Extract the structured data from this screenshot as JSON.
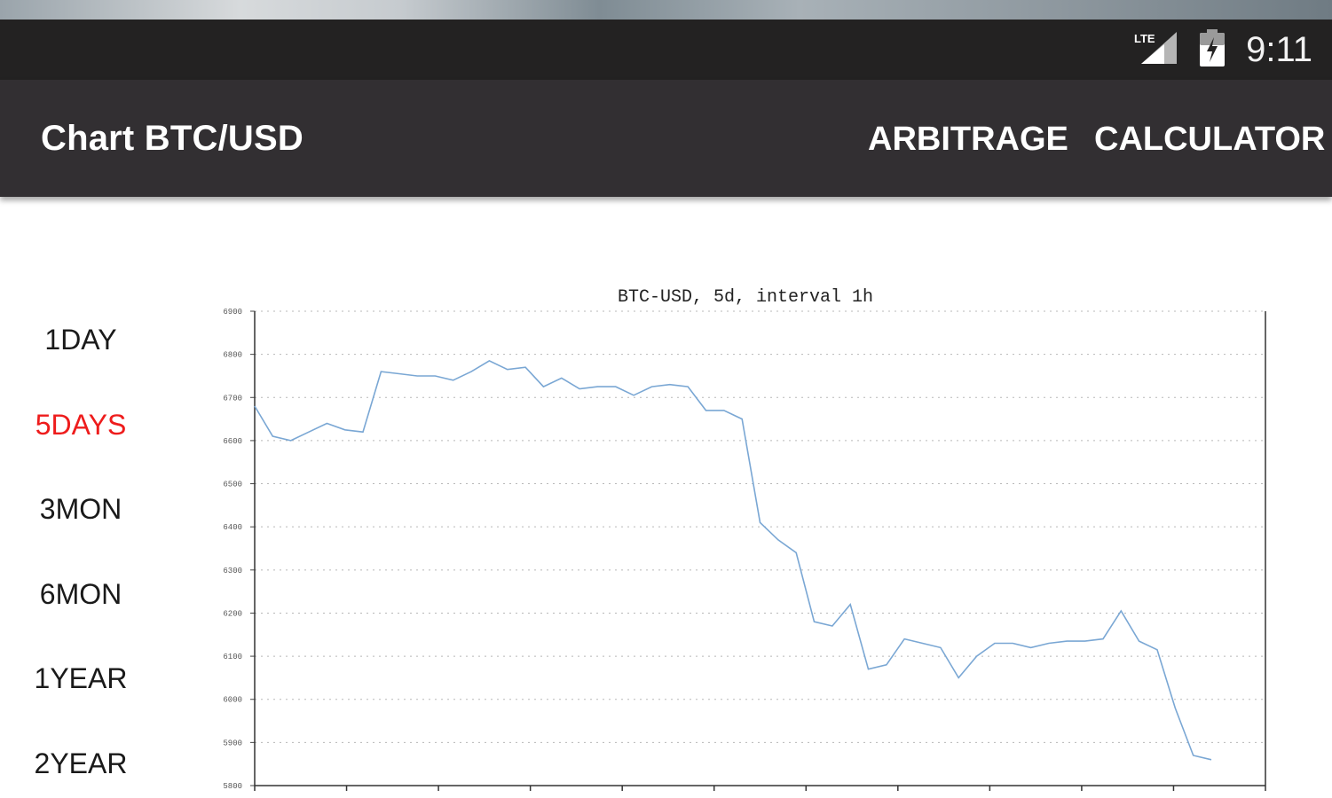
{
  "status_bar": {
    "network_label": "LTE",
    "time": "9:11"
  },
  "app_bar": {
    "title": "Chart BTC/USD",
    "actions": [
      "ARBITRAGE",
      "CALCULATOR"
    ]
  },
  "ranges": [
    {
      "label": "1DAY",
      "active": false
    },
    {
      "label": "5DAYS",
      "active": true
    },
    {
      "label": "3MON",
      "active": false
    },
    {
      "label": "6MON",
      "active": false
    },
    {
      "label": "1YEAR",
      "active": false
    },
    {
      "label": "2YEAR",
      "active": false
    }
  ],
  "colors": {
    "accent_active": "#ee1c1c",
    "line": "#7aa7d4"
  },
  "chart_data": {
    "type": "line",
    "title": "BTC-USD, 5d, interval 1h",
    "ylim": [
      5800,
      6900
    ],
    "yticks": [
      5800,
      5900,
      6000,
      6100,
      6200,
      6300,
      6400,
      6500,
      6600,
      6700,
      6800,
      6900
    ],
    "grid": true,
    "series": [
      {
        "values": [
          6680,
          6610,
          6600,
          6620,
          6640,
          6625,
          6620,
          6760,
          6755,
          6750,
          6750,
          6740,
          6760,
          6785,
          6765,
          6770,
          6725,
          6745,
          6720,
          6725,
          6725,
          6705,
          6725,
          6730,
          6725,
          6670,
          6670,
          6650,
          6410,
          6370,
          6340,
          6180,
          6170,
          6220,
          6070,
          6080,
          6140,
          6130,
          6120,
          6050,
          6100,
          6130,
          6130,
          6120,
          6130,
          6135,
          6135,
          6140,
          6205,
          6135,
          6115,
          5980,
          5870,
          5860
        ]
      }
    ]
  }
}
